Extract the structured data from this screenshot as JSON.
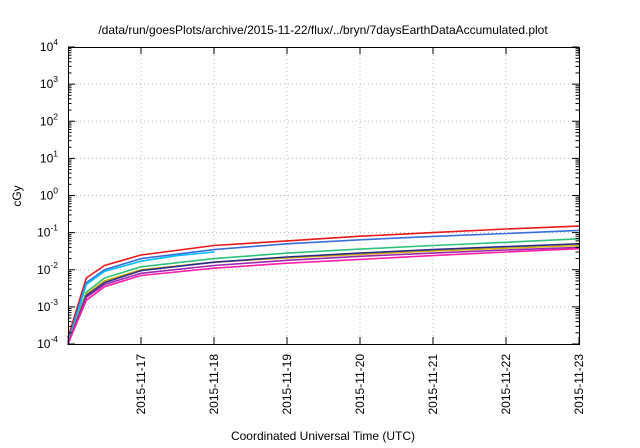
{
  "chart_data": {
    "type": "line",
    "title": "/data/run/goesPlots/archive/2015-11-22/flux/../bryn/7daysEarthDataAccumulated.plot",
    "xlabel": "Coordinated Universal Time (UTC)",
    "ylabel": "cGy",
    "x_scale": "time",
    "y_scale": "log",
    "xlim": [
      "2015-11-16T00:00",
      "2015-11-23T00:00"
    ],
    "ylim": [
      0.0001,
      10000
    ],
    "x_tick_labels": [
      "2015-11-17",
      "2015-11-18",
      "2015-11-19",
      "2015-11-20",
      "2015-11-21",
      "2015-11-22",
      "2015-11-23"
    ],
    "y_ticks": [
      {
        "base": "10",
        "exp": "-4"
      },
      {
        "base": "10",
        "exp": "-3"
      },
      {
        "base": "10",
        "exp": "-2"
      },
      {
        "base": "10",
        "exp": "-1"
      },
      {
        "base": "10",
        "exp": "0"
      },
      {
        "base": "10",
        "exp": "1"
      },
      {
        "base": "10",
        "exp": "2"
      },
      {
        "base": "10",
        "exp": "3"
      },
      {
        "base": "10",
        "exp": "4"
      }
    ],
    "grid": true,
    "legend": "none",
    "series": [
      {
        "color": "#e41a1c",
        "x": [
          "2015-11-16T00:00",
          "2015-11-16T06:00",
          "2015-11-16T12:00",
          "2015-11-17T00:00",
          "2015-11-18T00:00",
          "2015-11-19T00:00",
          "2015-11-20T00:00",
          "2015-11-21T00:00",
          "2015-11-22T00:00",
          "2015-11-23T00:00"
        ],
        "y": [
          0.00015,
          0.006,
          0.013,
          0.025,
          0.045,
          0.06,
          0.08,
          0.1,
          0.125,
          0.15
        ]
      },
      {
        "color": "#3a6fd8",
        "x": [
          "2015-11-16T00:00",
          "2015-11-16T06:00",
          "2015-11-16T12:00",
          "2015-11-17T00:00",
          "2015-11-18T00:00",
          "2015-11-19T00:00",
          "2015-11-20T00:00",
          "2015-11-21T00:00",
          "2015-11-22T00:00",
          "2015-11-23T00:00"
        ],
        "y": [
          0.00012,
          0.0045,
          0.01,
          0.02,
          0.035,
          0.05,
          0.064,
          0.079,
          0.095,
          0.115
        ]
      },
      {
        "color": "#00bfff",
        "x": [
          "2015-11-16T00:00",
          "2015-11-16T06:00",
          "2015-11-16T12:00",
          "2015-11-17T00:00",
          "2015-11-17T12:00",
          "2015-11-18T00:00"
        ],
        "y": [
          0.0001,
          0.004,
          0.009,
          0.017,
          0.024,
          0.03
        ]
      },
      {
        "color": "#2ec27e",
        "x": [
          "2015-11-16T00:00",
          "2015-11-16T06:00",
          "2015-11-16T12:00",
          "2015-11-17T00:00",
          "2015-11-18T00:00",
          "2015-11-19T00:00",
          "2015-11-20T00:00",
          "2015-11-21T00:00",
          "2015-11-22T00:00",
          "2015-11-23T00:00"
        ],
        "y": [
          0.0001,
          0.0025,
          0.006,
          0.012,
          0.02,
          0.028,
          0.036,
          0.045,
          0.055,
          0.068
        ]
      },
      {
        "color": "#d1b000",
        "x": [
          "2015-11-16T00:00",
          "2015-11-16T06:00",
          "2015-11-16T12:00",
          "2015-11-17T00:00",
          "2015-11-18T00:00",
          "2015-11-19T00:00",
          "2015-11-20T00:00",
          "2015-11-21T00:00",
          "2015-11-22T00:00",
          "2015-11-23T00:00"
        ],
        "y": [
          0.0001,
          0.0022,
          0.005,
          0.01,
          0.016,
          0.021,
          0.026,
          0.032,
          0.038,
          0.045
        ]
      },
      {
        "color": "#2b2b8c",
        "x": [
          "2015-11-16T00:00",
          "2015-11-16T06:00",
          "2015-11-16T12:00",
          "2015-11-17T00:00",
          "2015-11-18T00:00",
          "2015-11-19T00:00",
          "2015-11-20T00:00",
          "2015-11-21T00:00",
          "2015-11-22T00:00",
          "2015-11-23T00:00"
        ],
        "y": [
          0.0001,
          0.002,
          0.0045,
          0.0095,
          0.016,
          0.022,
          0.028,
          0.035,
          0.042,
          0.05
        ]
      },
      {
        "color": "#9c27b0",
        "x": [
          "2015-11-16T00:00",
          "2015-11-16T06:00",
          "2015-11-16T12:00",
          "2015-11-17T00:00",
          "2015-11-18T00:00",
          "2015-11-19T00:00",
          "2015-11-20T00:00",
          "2015-11-21T00:00",
          "2015-11-22T00:00",
          "2015-11-23T00:00"
        ],
        "y": [
          0.0001,
          0.0018,
          0.004,
          0.008,
          0.013,
          0.018,
          0.023,
          0.028,
          0.034,
          0.04
        ]
      },
      {
        "color": "#ff1fa8",
        "x": [
          "2015-11-16T00:00",
          "2015-11-16T06:00",
          "2015-11-16T12:00",
          "2015-11-17T00:00",
          "2015-11-18T00:00",
          "2015-11-19T00:00",
          "2015-11-20T00:00",
          "2015-11-21T00:00",
          "2015-11-22T00:00",
          "2015-11-23T00:00"
        ],
        "y": [
          0.0001,
          0.0015,
          0.0035,
          0.007,
          0.011,
          0.015,
          0.019,
          0.024,
          0.03,
          0.037
        ]
      }
    ]
  }
}
